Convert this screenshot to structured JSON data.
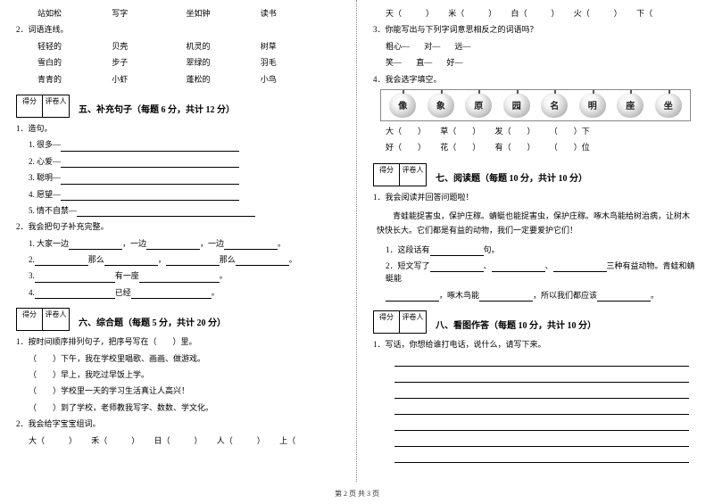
{
  "left": {
    "posture_row": [
      "站如松",
      "写字",
      "坐如钟",
      "读书"
    ],
    "q2_label": "2．词语连线。",
    "match_left": [
      "轻轻的",
      "雪白的",
      "青青的"
    ],
    "match_mid1": [
      "贝壳",
      "步子",
      "小虾"
    ],
    "match_mid2": [
      "机灵的",
      "翠绿的",
      "蓬松的"
    ],
    "match_right": [
      "树草",
      "羽毛",
      "小鸟"
    ],
    "score_labels": [
      "得分",
      "评卷人"
    ],
    "sec5_title": "五、补充句子（每题 6 分，共计 12 分）",
    "q5_1": "1．造句。",
    "q5_1_items": [
      "1. 很多—",
      "2. 心爱—",
      "3. 聪明—",
      "4. 愿望—",
      "5. 情不自禁—"
    ],
    "q5_2": "2．我会把句子补充完整。",
    "q5_2_items": [
      {
        "pre": "1. 大家一边",
        "blanks": [
          "，一边",
          "，一边",
          "。"
        ]
      },
      {
        "pre": "2.",
        "blanks": [
          "那么",
          "，",
          "那么",
          "。"
        ]
      },
      {
        "pre": "3.",
        "blanks": [
          "有一座",
          "。"
        ]
      },
      {
        "pre": "4.",
        "blanks": [
          "已经",
          "。"
        ]
      }
    ],
    "sec6_title": "六、综合题（每题 5 分，共计 20 分）",
    "q6_1": "1．按时间顺序排列句子，把序号写在（　　）里。",
    "q6_1_items": [
      "（　　）下午，我在学校里唱歌、画画、做游戏。",
      "（　　）早上，我吃过早饭上学。",
      "（　　）学校里一天的学习生活真让人高兴！",
      "（　　）到了学校，老师教我写字、数数、学文化。"
    ],
    "q6_2": "2．我会给字宝宝组词。",
    "q6_2_row1": [
      "大（　　　）",
      "禾（　　　）",
      "日（　　　）",
      "人（　　　）",
      "上（"
    ]
  },
  "right": {
    "char_row1": [
      "天（　　　）",
      "米（　　　）",
      "白（　　　）",
      "火（　　　）",
      "下（"
    ],
    "q3": "3．你能写出与下列字词意思相反之的词语吗？",
    "q3_items": [
      "粗心—",
      "对—",
      "远—",
      "笑—",
      "直—",
      "好—"
    ],
    "q4": "4．我会选字填空。",
    "apples": [
      "像",
      "象",
      "原",
      "园",
      "名",
      "明",
      "座",
      "坐"
    ],
    "q4_row1": [
      "大（　　）",
      "草（　　）",
      "发（　　）",
      "（　　）下"
    ],
    "q4_row2": [
      "好（　　）",
      "花（　　）",
      "有（　　）",
      "（　　）位"
    ],
    "sec7_title": "七、阅读题（每题 10 分，共计 10 分）",
    "q7_1": "1．我会阅读并回答问题啦！",
    "q7_passage": "　　青蛙能捉害虫，保护庄稼。蜻蜓也能捉害虫，保护庄稼。啄木鸟能给树治病，让树木快快长大。它们都是有益的动物，我们一定要爱护它们！",
    "q7_items": [
      {
        "pre": "1．这段话有",
        "after": "句。"
      },
      {
        "pre": "2．短文写了",
        "mid1": "、",
        "mid2": "、",
        "after": "三种有益动物。青蛙和蜻蜓能"
      },
      {
        "pre": "",
        "mid": "，啄木鸟能",
        "after": "，所以我们都应该"
      }
    ],
    "sec8_title": "八、看图作答（每题 10 分，共计 10 分）",
    "q8_1": "1．写话，你想给谁打电话，说什么，请写下来。"
  },
  "footer": "第 2 页  共 3 页"
}
